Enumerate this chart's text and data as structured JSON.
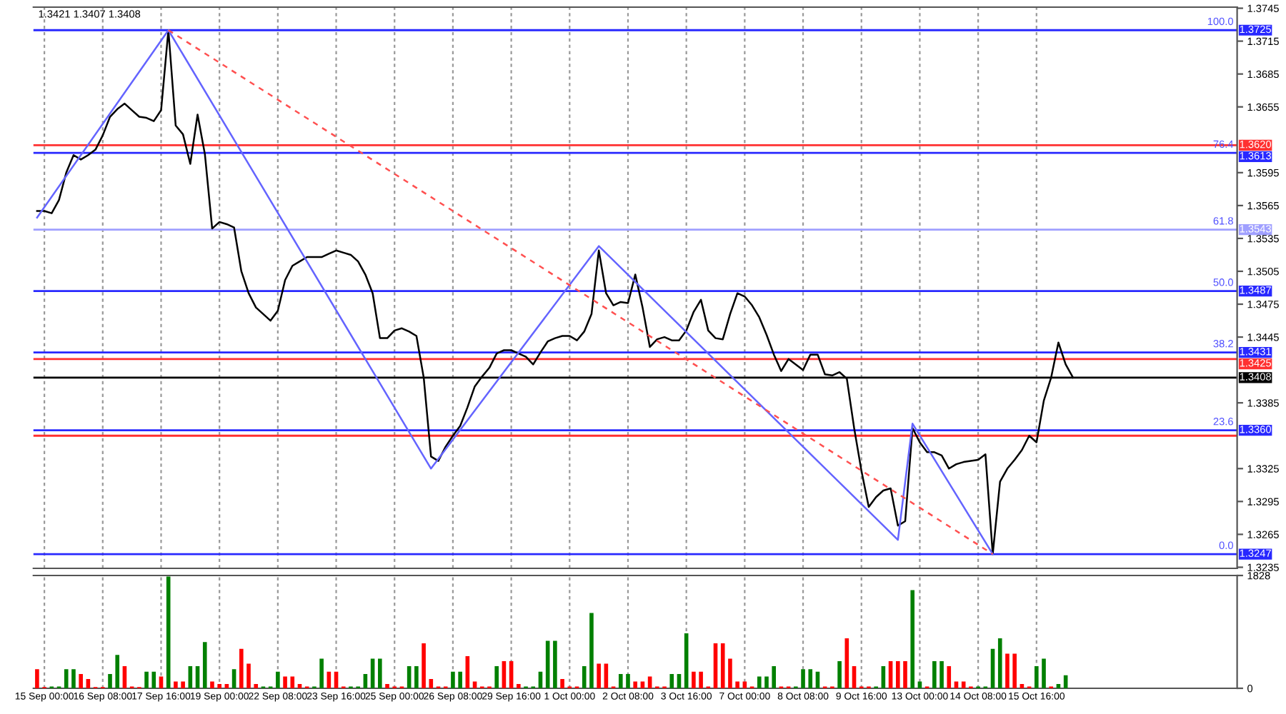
{
  "chart_data": [
    {
      "type": "line",
      "categories": [
        null,
        null,
        null,
        null,
        null,
        null,
        null,
        null,
        null,
        null,
        null,
        null,
        null,
        null,
        null,
        null,
        null,
        null,
        null,
        null,
        null,
        null,
        null,
        null,
        null,
        null,
        null,
        null,
        null,
        null,
        null,
        null,
        null,
        null,
        null,
        null,
        null,
        null,
        null,
        null,
        null,
        null,
        null,
        null,
        null,
        null,
        null,
        null,
        null,
        null,
        null,
        null,
        null,
        null,
        null,
        null,
        null,
        null,
        null,
        null,
        null,
        null,
        null,
        null,
        null,
        null,
        null,
        null,
        null,
        null,
        null,
        null,
        null,
        null,
        null,
        null,
        null,
        null,
        null,
        null,
        null,
        null,
        null,
        null,
        null,
        null,
        null,
        null,
        null,
        null,
        null,
        null,
        null,
        null,
        null,
        null,
        null,
        null,
        null,
        null,
        null,
        null,
        null,
        null,
        null,
        null,
        null,
        null,
        null,
        null,
        null,
        null,
        null,
        null,
        null,
        null,
        null,
        null,
        null,
        null,
        null,
        null,
        null,
        null,
        null,
        null,
        null,
        null,
        null,
        null,
        null,
        null,
        null,
        null,
        null,
        null,
        null,
        null,
        null,
        null,
        null,
        null,
        null,
        null,
        null,
        null,
        null,
        null,
        null,
        null,
        null,
        null,
        null,
        null,
        null,
        null,
        null,
        null,
        null,
        null,
        null,
        null,
        null,
        null,
        null
      ],
      "series": [
        {
          "color": "#000000",
          "values": [
            1.356,
            1.356,
            1.3558,
            1.357,
            1.3595,
            1.3611,
            1.3607,
            1.3611,
            1.3616,
            1.3629,
            1.3646,
            1.3653,
            1.3658,
            1.3652,
            1.3646,
            1.3645,
            1.3642,
            1.3652,
            1.3725,
            1.3638,
            1.363,
            1.3603,
            1.3648,
            1.3612,
            1.3544,
            1.355,
            1.3548,
            1.3545,
            1.3505,
            1.3485,
            1.3472,
            1.3466,
            1.346,
            1.3469,
            1.3497,
            1.351,
            1.3514,
            1.3518,
            1.3518,
            1.3518,
            1.3521,
            1.3524,
            1.3522,
            1.352,
            1.3514,
            1.3502,
            1.3485,
            1.3444,
            1.3444,
            1.3451,
            1.3453,
            1.345,
            1.3446,
            1.3408,
            1.3336,
            1.3332,
            1.3345,
            1.3355,
            1.3364,
            1.3381,
            1.34,
            1.3409,
            1.3417,
            1.343,
            1.3433,
            1.3433,
            1.343,
            1.3427,
            1.342,
            1.3431,
            1.3441,
            1.3444,
            1.3446,
            1.3446,
            1.3442,
            1.345,
            1.3466,
            1.3524,
            1.3485,
            1.3474,
            1.3477,
            1.3476,
            1.3502,
            1.3472,
            1.3436,
            1.3443,
            1.3445,
            1.3442,
            1.3442,
            1.3451,
            1.3468,
            1.3479,
            1.3451,
            1.3444,
            1.3443,
            1.3466,
            1.3485,
            1.3482,
            1.3474,
            1.3463,
            1.3447,
            1.3429,
            1.3414,
            1.3425,
            1.342,
            1.3415,
            1.3429,
            1.3429,
            1.3411,
            1.341,
            1.3413,
            1.3407,
            1.3362,
            1.3323,
            1.329,
            1.3299,
            1.3305,
            1.3307,
            1.3273,
            1.3277,
            1.3362,
            1.3349,
            1.334,
            1.334,
            1.3337,
            1.3325,
            1.3329,
            1.3331,
            1.3332,
            1.3333,
            1.3338,
            1.3247,
            1.3313,
            1.3325,
            1.3333,
            1.3342,
            1.3355,
            1.3349,
            1.3387,
            1.3408,
            1.344,
            1.342,
            1.3408,
            null,
            null,
            null,
            null,
            null,
            null,
            null,
            null,
            null,
            null,
            null,
            null,
            null,
            null,
            null,
            null,
            null,
            null,
            null,
            null,
            null,
            null
          ]
        },
        {
          "color": "#6464ff",
          "values": [
            1.3554,
            null,
            null,
            null,
            null,
            null,
            null,
            null,
            null,
            null,
            null,
            null,
            null,
            null,
            null,
            null,
            null,
            null,
            1.3725,
            null,
            null,
            null,
            null,
            null,
            null,
            null,
            null,
            null,
            null,
            null,
            null,
            null,
            null,
            null,
            null,
            null,
            null,
            null,
            null,
            null,
            null,
            null,
            null,
            null,
            null,
            null,
            null,
            null,
            null,
            null,
            null,
            null,
            null,
            null,
            1.3325,
            null,
            null,
            null,
            null,
            null,
            null,
            null,
            null,
            null,
            null,
            null,
            null,
            null,
            null,
            null,
            null,
            null,
            null,
            null,
            null,
            null,
            null,
            1.3528,
            null,
            null,
            null,
            null,
            null,
            null,
            null,
            null,
            null,
            null,
            null,
            null,
            null,
            null,
            null,
            null,
            null,
            null,
            null,
            null,
            null,
            null,
            null,
            null,
            null,
            null,
            null,
            null,
            null,
            null,
            null,
            null,
            null,
            null,
            null,
            null,
            null,
            null,
            null,
            null,
            1.326,
            null,
            1.3366,
            null,
            null,
            null,
            null,
            null,
            null,
            null,
            null,
            null,
            null,
            1.3247,
            null,
            null,
            null,
            null,
            null,
            null,
            null,
            null,
            null,
            null,
            null,
            null,
            null,
            null,
            null,
            null,
            null,
            null,
            null,
            null,
            null,
            null,
            null,
            null,
            null,
            null,
            null,
            null,
            null,
            null,
            null,
            null,
            null
          ]
        },
        {
          "color": "#ff5050",
          "line_style": "dashed",
          "values": [
            null,
            null,
            null,
            null,
            null,
            null,
            null,
            null,
            null,
            null,
            null,
            null,
            null,
            null,
            null,
            null,
            null,
            null,
            1.3725,
            null,
            null,
            null,
            null,
            null,
            null,
            null,
            null,
            null,
            null,
            null,
            null,
            null,
            null,
            null,
            null,
            null,
            null,
            null,
            null,
            null,
            null,
            null,
            null,
            null,
            null,
            null,
            null,
            null,
            null,
            null,
            null,
            null,
            null,
            null,
            null,
            null,
            null,
            null,
            null,
            null,
            null,
            null,
            null,
            null,
            null,
            null,
            null,
            null,
            null,
            null,
            null,
            null,
            null,
            null,
            null,
            null,
            null,
            null,
            null,
            null,
            null,
            null,
            null,
            null,
            null,
            null,
            null,
            null,
            null,
            null,
            null,
            null,
            null,
            null,
            null,
            null,
            null,
            null,
            null,
            null,
            null,
            null,
            null,
            null,
            null,
            null,
            null,
            null,
            null,
            null,
            null,
            null,
            null,
            null,
            null,
            null,
            null,
            null,
            null,
            null,
            null,
            null,
            null,
            null,
            null,
            null,
            null,
            null,
            null,
            null,
            null,
            1.3247,
            null,
            null,
            null,
            null,
            null,
            null,
            null,
            null,
            null,
            null,
            null,
            null,
            null,
            null,
            null,
            null,
            null,
            null,
            null,
            null,
            null,
            null,
            null,
            null,
            null,
            null,
            null,
            null,
            null,
            null,
            null,
            null,
            null
          ]
        }
      ],
      "ylim": [
        1.3234,
        1.3746
      ],
      "yticks": [
        1.3745,
        1.3715,
        1.3685,
        1.3655,
        1.3595,
        1.3565,
        1.3535,
        1.3505,
        1.3475,
        1.3445,
        1.3385,
        1.3325,
        1.3295,
        1.3265,
        1.3235
      ],
      "tick_labels": "y",
      "grid": "x",
      "ref_lines": [
        {
          "axis": "y",
          "value": 1.3725,
          "label": "1.3725",
          "color": "#2828ff"
        },
        {
          "axis": "y",
          "value": 1.362,
          "label": "1.3620",
          "color": "#ff3030"
        },
        {
          "axis": "y",
          "value": 1.3613,
          "label": "1.3613",
          "color": "#2828ff"
        },
        {
          "axis": "y",
          "value": 1.3543,
          "label": "1.3543",
          "color": "#a0a0ff"
        },
        {
          "axis": "y",
          "value": 1.3487,
          "label": "1.3487",
          "color": "#2828ff"
        },
        {
          "axis": "y",
          "value": 1.3431,
          "label": "1.3431",
          "color": "#2828ff"
        },
        {
          "axis": "y",
          "value": 1.3425,
          "label": "1.3425",
          "color": "#ff3030"
        },
        {
          "axis": "y",
          "value": 1.3408,
          "label": "1.3408",
          "color": "#000000"
        },
        {
          "axis": "y",
          "value": 1.336,
          "label": "1.3360",
          "color": "#2828ff"
        },
        {
          "axis": "y",
          "value": 1.3355,
          "label": null,
          "color": "#ff3030"
        },
        {
          "axis": "y",
          "value": 1.3247,
          "label": "1.3247",
          "color": "#2828ff"
        }
      ],
      "annotations": [
        "1.3421 1.3407 1.3408",
        {
          "text": "100.0",
          "y": 1.3725
        },
        {
          "text": "76.4",
          "y": 1.3613
        },
        {
          "text": "61.8",
          "y": 1.3543
        },
        {
          "text": "50.0",
          "y": 1.3487
        },
        {
          "text": "38.2",
          "y": 1.3431
        },
        {
          "text": "23.6",
          "y": 1.336
        },
        {
          "text": "0.0",
          "y": 1.3247
        }
      ]
    },
    {
      "type": "bar",
      "categories": [
        null,
        "15 Sep 00:00",
        null,
        null,
        null,
        null,
        null,
        null,
        null,
        "16 Sep 08:00",
        null,
        null,
        null,
        null,
        null,
        null,
        null,
        "17 Sep 16:00",
        null,
        null,
        null,
        null,
        null,
        null,
        null,
        "19 Sep 00:00",
        null,
        null,
        null,
        null,
        null,
        null,
        null,
        "22 Sep 08:00",
        null,
        null,
        null,
        null,
        null,
        null,
        null,
        "23 Sep 16:00",
        null,
        null,
        null,
        null,
        null,
        null,
        null,
        "25 Sep 00:00",
        null,
        null,
        null,
        null,
        null,
        null,
        null,
        "26 Sep 08:00",
        null,
        null,
        null,
        null,
        null,
        null,
        null,
        "29 Sep 16:00",
        null,
        null,
        null,
        null,
        null,
        null,
        null,
        "1 Oct 00:00",
        null,
        null,
        null,
        null,
        null,
        null,
        null,
        "2 Oct 08:00",
        null,
        null,
        null,
        null,
        null,
        null,
        null,
        "3 Oct 16:00",
        null,
        null,
        null,
        null,
        null,
        null,
        null,
        "7 Oct 00:00",
        null,
        null,
        null,
        null,
        null,
        null,
        null,
        "8 Oct 08:00",
        null,
        null,
        null,
        null,
        null,
        null,
        null,
        "9 Oct 16:00",
        null,
        null,
        null,
        null,
        null,
        null,
        null,
        "13 Oct 00:00",
        null,
        null,
        null,
        null,
        null,
        null,
        null,
        "14 Oct 08:00",
        null,
        null,
        null,
        null,
        null,
        null,
        null,
        "15 Oct 16:00",
        null,
        null,
        null,
        null,
        null,
        null,
        null,
        null,
        null,
        null,
        null,
        null,
        null,
        null,
        null,
        null,
        null,
        null,
        null,
        null,
        null,
        null,
        null,
        null,
        null,
        null,
        null
      ],
      "values": [
        310,
        20,
        30,
        30,
        310,
        310,
        230,
        150,
        20,
        20,
        230,
        540,
        360,
        30,
        20,
        270,
        270,
        190,
        1810,
        110,
        110,
        360,
        360,
        750,
        110,
        70,
        70,
        310,
        640,
        400,
        70,
        30,
        30,
        270,
        190,
        190,
        70,
        30,
        30,
        480,
        270,
        270,
        30,
        30,
        30,
        230,
        480,
        480,
        70,
        30,
        30,
        360,
        360,
        730,
        150,
        30,
        30,
        270,
        270,
        520,
        110,
        30,
        30,
        360,
        440,
        440,
        70,
        30,
        30,
        270,
        770,
        770,
        150,
        30,
        30,
        360,
        1220,
        400,
        400,
        30,
        230,
        230,
        110,
        110,
        190,
        30,
        30,
        230,
        230,
        890,
        270,
        270,
        30,
        730,
        730,
        480,
        110,
        110,
        30,
        190,
        190,
        360,
        30,
        30,
        30,
        310,
        310,
        270,
        30,
        30,
        440,
        810,
        360,
        30,
        30,
        30,
        360,
        440,
        440,
        440,
        1590,
        110,
        30,
        440,
        440,
        360,
        110,
        110,
        30,
        30,
        30,
        640,
        810,
        560,
        560,
        70,
        30,
        360,
        480,
        30,
        70,
        210,
        null,
        null,
        null,
        null,
        null,
        null,
        null,
        null,
        null,
        null,
        null,
        null,
        null,
        null,
        null,
        null,
        null,
        null,
        null,
        null,
        null,
        null,
        null
      ],
      "colors": [
        "#ff0000",
        "#ff0000",
        "#008000",
        "#008000",
        "#008000",
        "#008000",
        "#ff0000",
        "#ff0000",
        "#ff0000",
        "#ff0000",
        "#008000",
        "#008000",
        "#ff0000",
        "#ff0000",
        "#ff0000",
        "#008000",
        "#008000",
        "#ff0000",
        "#008000",
        "#ff0000",
        "#ff0000",
        "#008000",
        "#008000",
        "#008000",
        "#ff0000",
        "#ff0000",
        "#ff0000",
        "#008000",
        "#ff0000",
        "#ff0000",
        "#ff0000",
        "#008000",
        "#008000",
        "#008000",
        "#ff0000",
        "#ff0000",
        "#ff0000",
        "#ff0000",
        "#008000",
        "#008000",
        "#ff0000",
        "#ff0000",
        "#ff0000",
        "#008000",
        "#008000",
        "#008000",
        "#008000",
        "#008000",
        "#ff0000",
        "#ff0000",
        "#ff0000",
        "#008000",
        "#008000",
        "#ff0000",
        "#ff0000",
        "#ff0000",
        "#ff0000",
        "#008000",
        "#008000",
        "#ff0000",
        "#ff0000",
        "#ff0000",
        "#ff0000",
        "#008000",
        "#ff0000",
        "#ff0000",
        "#ff0000",
        "#008000",
        "#008000",
        "#008000",
        "#008000",
        "#008000",
        "#ff0000",
        "#ff0000",
        "#ff0000",
        "#008000",
        "#008000",
        "#ff0000",
        "#ff0000",
        "#ff0000",
        "#008000",
        "#008000",
        "#ff0000",
        "#ff0000",
        "#ff0000",
        "#ff0000",
        "#ff0000",
        "#008000",
        "#008000",
        "#008000",
        "#ff0000",
        "#ff0000",
        "#ff0000",
        "#ff0000",
        "#ff0000",
        "#ff0000",
        "#ff0000",
        "#ff0000",
        "#ff0000",
        "#008000",
        "#008000",
        "#008000",
        "#ff0000",
        "#ff0000",
        "#008000",
        "#008000",
        "#008000",
        "#008000",
        "#ff0000",
        "#ff0000",
        "#008000",
        "#ff0000",
        "#ff0000",
        "#ff0000",
        "#ff0000",
        "#008000",
        "#008000",
        "#ff0000",
        "#ff0000",
        "#ff0000",
        "#008000",
        "#008000",
        "#ff0000",
        "#008000",
        "#008000",
        "#ff0000",
        "#ff0000",
        "#ff0000",
        "#ff0000",
        "#008000",
        "#008000",
        "#008000",
        "#008000",
        "#ff0000",
        "#ff0000",
        "#ff0000",
        "#ff0000",
        "#008000",
        "#008000",
        "#ff0000",
        "#008000",
        "#008000",
        null,
        null,
        null,
        null,
        null,
        null,
        null,
        null,
        null,
        null,
        null,
        null,
        null,
        null,
        null,
        null,
        null,
        null,
        null,
        null,
        null,
        null,
        null
      ],
      "ylim": [
        0,
        1828
      ],
      "yticks": [
        0,
        1828
      ],
      "grid": "x"
    }
  ]
}
